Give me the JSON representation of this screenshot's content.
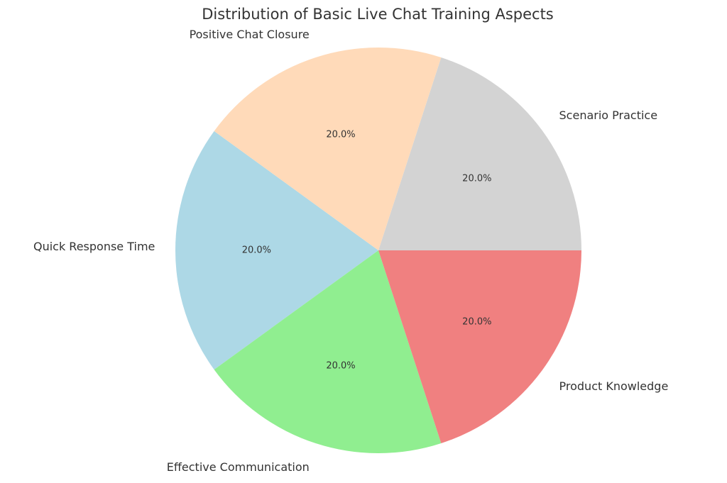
{
  "chart_data": {
    "type": "pie",
    "title": "Distribution of Basic Live Chat Training Aspects",
    "categories": [
      "Quick Response Time",
      "Effective Communication",
      "Product Knowledge",
      "Scenario Practice",
      "Positive Chat Closure"
    ],
    "values": [
      20,
      20,
      20,
      20,
      20
    ],
    "percent_labels": [
      "20.0%",
      "20.0%",
      "20.0%",
      "20.0%",
      "20.0%"
    ],
    "colors": [
      "#add8e6",
      "#90ee90",
      "#f08080",
      "#d3d3d3",
      "#ffdab9"
    ],
    "start_angle_deg": 144,
    "direction": "counterclockwise",
    "legend": "none"
  }
}
